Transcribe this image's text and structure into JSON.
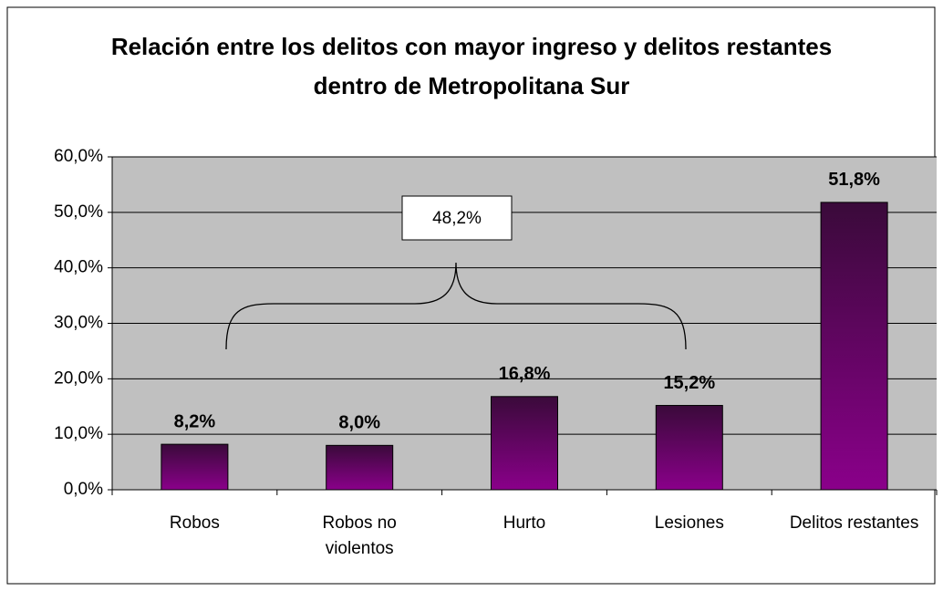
{
  "chart_data": {
    "type": "bar",
    "title": "Relación entre los delitos con mayor ingreso y delitos restantes dentro de Metropolitana Sur",
    "categories": [
      "Robos",
      "Robos no violentos",
      "Hurto",
      "Lesiones",
      "Delitos restantes"
    ],
    "values": [
      8.2,
      8.0,
      16.8,
      15.2,
      51.8
    ],
    "value_labels": [
      "8,2%",
      "8,0%",
      "16,8%",
      "15,2%",
      "51,8%"
    ],
    "annotation": "48,2%",
    "color": "#800080",
    "ylim": [
      0,
      60
    ],
    "yticks": [
      {
        "value": 0,
        "label": "0,0%"
      },
      {
        "value": 10,
        "label": "10,0%"
      },
      {
        "value": 20,
        "label": "20,0%"
      },
      {
        "value": 30,
        "label": "30,0%"
      },
      {
        "value": 40,
        "label": "40,0%"
      },
      {
        "value": 50,
        "label": "50,0%"
      },
      {
        "value": 60,
        "label": "60,0%"
      }
    ],
    "grid": true
  }
}
